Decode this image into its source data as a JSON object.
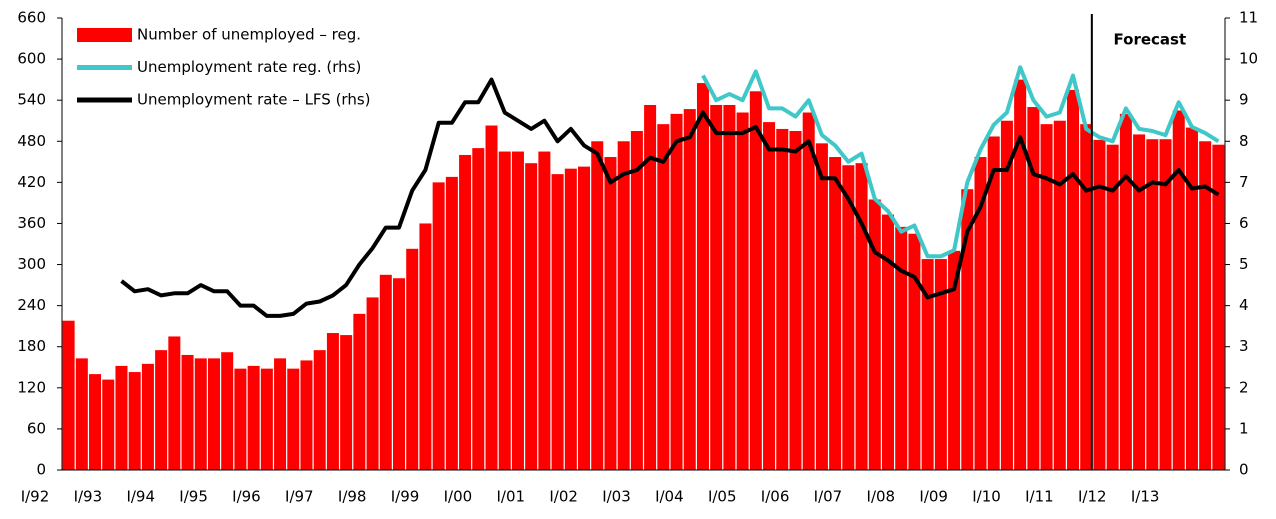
{
  "chart_data": {
    "type": "bar-line",
    "categories": [
      "I/92",
      null,
      null,
      null,
      "I/93",
      null,
      null,
      null,
      "I/94",
      null,
      null,
      null,
      "I/95",
      null,
      null,
      null,
      "I/96",
      null,
      null,
      null,
      "I/97",
      null,
      null,
      null,
      "I/98",
      null,
      null,
      null,
      "I/99",
      null,
      null,
      null,
      "I/00",
      null,
      null,
      null,
      "I/01",
      null,
      null,
      null,
      "I/02",
      null,
      null,
      null,
      "I/03",
      null,
      null,
      null,
      "I/04",
      null,
      null,
      null,
      "I/05",
      null,
      null,
      null,
      "I/06",
      null,
      null,
      null,
      "I/07",
      null,
      null,
      null,
      "I/08",
      null,
      null,
      null,
      "I/09",
      null,
      null,
      null,
      "I/10",
      null,
      null,
      null,
      "I/11",
      null,
      null,
      null,
      "I/12",
      null,
      null,
      null,
      "I/13",
      null,
      null,
      null
    ],
    "series": [
      {
        "name": "Number of unemployed – reg.",
        "type": "bar",
        "color": "#ff0000",
        "values": [
          218,
          163,
          140,
          132,
          152,
          143,
          155,
          175,
          195,
          168,
          163,
          163,
          172,
          148,
          152,
          148,
          163,
          148,
          160,
          175,
          200,
          197,
          228,
          252,
          285,
          280,
          323,
          360,
          420,
          428,
          460,
          470,
          503,
          465,
          465,
          448,
          465,
          432,
          440,
          443,
          480,
          457,
          480,
          495,
          533,
          505,
          520,
          527,
          565,
          533,
          533,
          522,
          553,
          508,
          498,
          495,
          522,
          477,
          457,
          445,
          448,
          395,
          373,
          355,
          345,
          308,
          308,
          320,
          410,
          457,
          487,
          510,
          570,
          530,
          505,
          510,
          555,
          505,
          482,
          475,
          520,
          490,
          483,
          483,
          525,
          500,
          480,
          475
        ]
      },
      {
        "name": "Unemployment rate reg. (rhs)",
        "type": "line",
        "axis": "y2",
        "color": "#40c8c8",
        "values": [
          null,
          null,
          null,
          null,
          null,
          null,
          null,
          null,
          null,
          null,
          null,
          null,
          null,
          null,
          null,
          null,
          null,
          null,
          null,
          null,
          null,
          null,
          null,
          null,
          null,
          null,
          null,
          null,
          null,
          null,
          null,
          null,
          null,
          null,
          null,
          null,
          null,
          null,
          null,
          null,
          null,
          null,
          null,
          null,
          null,
          null,
          null,
          null,
          9.6,
          9.0,
          9.15,
          9.0,
          9.7,
          8.8,
          8.8,
          8.6,
          9.0,
          8.15,
          7.9,
          7.5,
          7.7,
          6.6,
          6.3,
          5.8,
          5.95,
          5.2,
          5.2,
          5.35,
          7.0,
          7.8,
          8.4,
          8.7,
          9.8,
          9.0,
          8.6,
          8.7,
          9.6,
          8.3,
          8.1,
          8.0,
          8.8,
          8.3,
          8.25,
          8.15,
          8.95,
          8.35,
          8.2,
          8.0
        ]
      },
      {
        "name": "Unemployment rate – LFS (rhs)",
        "type": "line",
        "axis": "y2",
        "color": "#000000",
        "values": [
          null,
          null,
          null,
          null,
          4.6,
          4.35,
          4.4,
          4.25,
          4.3,
          4.3,
          4.5,
          4.35,
          4.35,
          4.0,
          4.0,
          3.75,
          3.75,
          3.8,
          4.05,
          4.1,
          4.25,
          4.5,
          5.0,
          5.4,
          5.9,
          5.9,
          6.8,
          7.3,
          8.45,
          8.45,
          8.95,
          8.95,
          9.5,
          8.7,
          8.5,
          8.3,
          8.5,
          8.0,
          8.3,
          7.9,
          7.7,
          7.0,
          7.2,
          7.3,
          7.6,
          7.5,
          8.0,
          8.1,
          8.7,
          8.2,
          8.2,
          8.2,
          8.35,
          7.8,
          7.8,
          7.75,
          8.0,
          7.1,
          7.1,
          6.6,
          6.0,
          5.3,
          5.1,
          4.85,
          4.7,
          4.2,
          4.3,
          4.4,
          5.8,
          6.4,
          7.3,
          7.3,
          8.1,
          7.2,
          7.1,
          6.95,
          7.2,
          6.8,
          6.9,
          6.8,
          7.15,
          6.8,
          7.0,
          6.95,
          7.3,
          6.85,
          6.9,
          6.7
        ]
      }
    ],
    "ylim": [
      0,
      660
    ],
    "yticks": [
      0,
      60,
      120,
      180,
      240,
      300,
      360,
      420,
      480,
      540,
      600,
      660
    ],
    "y2lim": [
      0,
      11
    ],
    "y2ticks": [
      0,
      1,
      2,
      3,
      4,
      5,
      6,
      7,
      8,
      9,
      10,
      11
    ],
    "annotation": {
      "text": "Forecast",
      "from_category": 78
    },
    "legend": "top-left"
  }
}
